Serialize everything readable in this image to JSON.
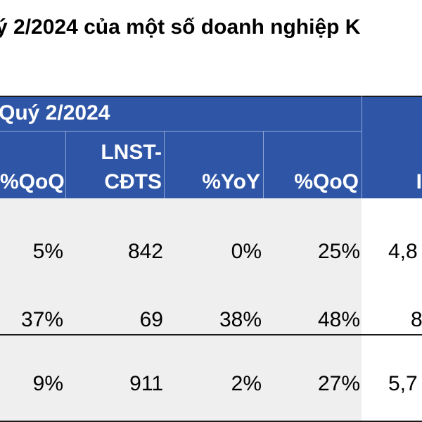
{
  "title": "ý 2/2024 của một số doanh nghiệp K",
  "header": {
    "group_label": "Quý 2/2024",
    "col_qoq1": "%QoQ",
    "col_lnst_line1": "LNST-",
    "col_lnst_line2": "CĐTS",
    "col_yoy": "%YoY",
    "col_qoq2": "%QoQ",
    "col_last": "I"
  },
  "rows": [
    {
      "qoq1": "5%",
      "lnst": "842",
      "yoy": "0%",
      "qoq2": "25%",
      "last": "4,8"
    },
    {
      "qoq1": "37%",
      "lnst": "69",
      "yoy": "38%",
      "qoq2": "48%",
      "last": "8"
    },
    {
      "qoq1": "9%",
      "lnst": "911",
      "yoy": "2%",
      "qoq2": "27%",
      "last": "5,7"
    }
  ]
}
